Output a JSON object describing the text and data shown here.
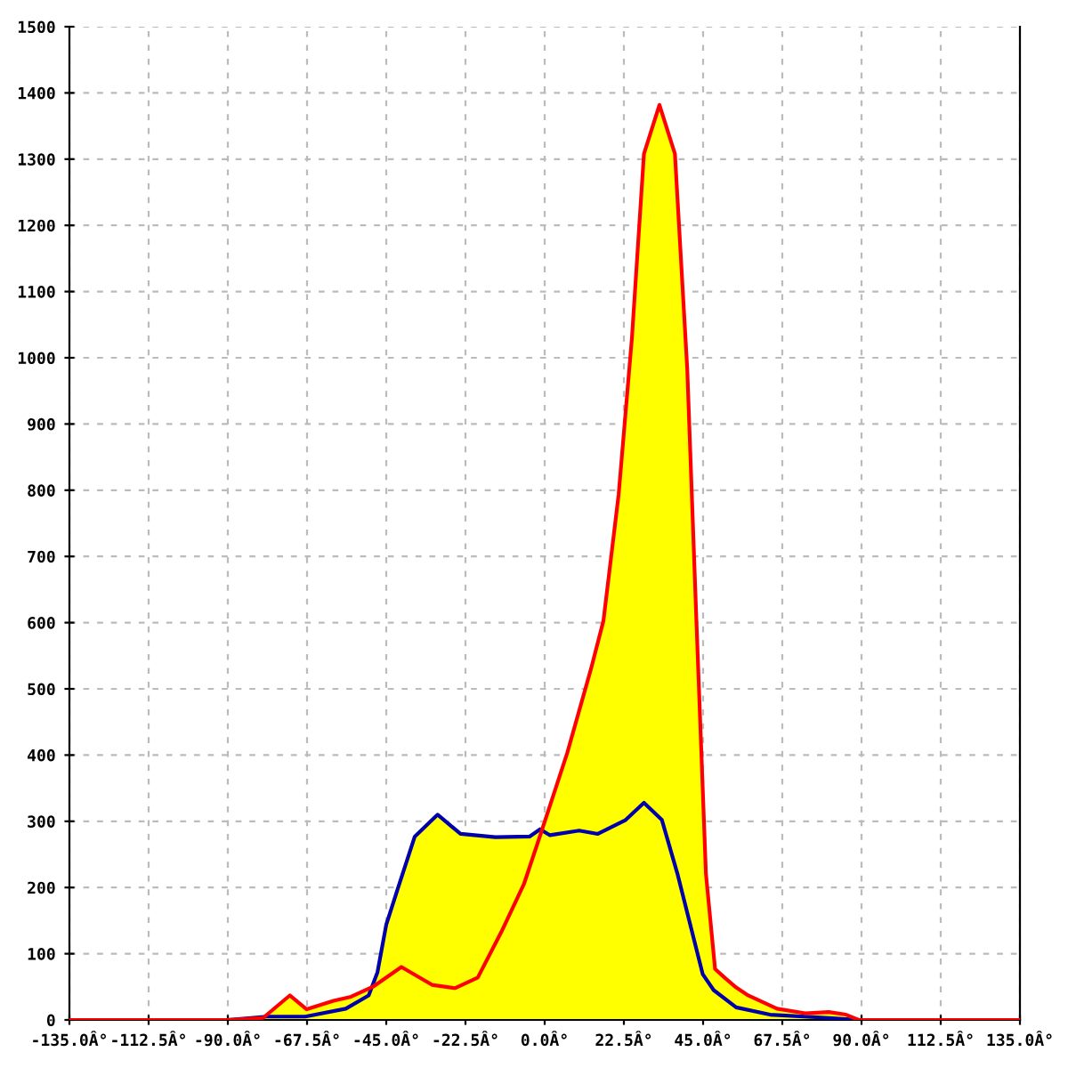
{
  "chart_data": {
    "type": "line",
    "xlim": [
      -135,
      135
    ],
    "ylim": [
      0,
      1500
    ],
    "xticks": [
      {
        "value": -135,
        "label": "-135.0Â°"
      },
      {
        "value": -112.5,
        "label": "-112.5Â°"
      },
      {
        "value": -90,
        "label": "-90.0Â°"
      },
      {
        "value": -67.5,
        "label": "-67.5Â°"
      },
      {
        "value": -45,
        "label": "-45.0Â°"
      },
      {
        "value": -22.5,
        "label": "-22.5Â°"
      },
      {
        "value": 0,
        "label": "0.0Â°"
      },
      {
        "value": 22.5,
        "label": "22.5Â°"
      },
      {
        "value": 45,
        "label": "45.0Â°"
      },
      {
        "value": 67.5,
        "label": "67.5Â°"
      },
      {
        "value": 90,
        "label": "90.0Â°"
      },
      {
        "value": 112.5,
        "label": "112.5Â°"
      },
      {
        "value": 135,
        "label": "135.0Â°"
      }
    ],
    "yticks": [
      0,
      100,
      200,
      300,
      400,
      500,
      600,
      700,
      800,
      900,
      1000,
      1100,
      1200,
      1300,
      1400,
      1500
    ],
    "grid": true,
    "legend": false,
    "series": [
      {
        "type": "area",
        "color": "#ffff00",
        "x": [
          -90,
          -80,
          -72.4,
          -67.6,
          -60,
          -55,
          -48.5,
          -47.5,
          -45,
          -41.8,
          -36.9,
          -30.4,
          -23.9,
          -14,
          -4.3,
          -1.3,
          6.4,
          13.2,
          16.7,
          21,
          24.8,
          28.2,
          32.6,
          37,
          40.5,
          43.1,
          45.8,
          48.4,
          51.3,
          54.4,
          57.8,
          66,
          74,
          80.7,
          85.6,
          89.2
        ],
        "values": [
          0,
          5,
          37,
          16,
          29,
          35,
          51,
          72,
          144,
          197,
          277,
          310,
          281,
          276,
          277,
          288,
          403,
          531,
          603,
          793,
          1031,
          1308,
          1382,
          1308,
          983,
          603,
          221,
          77,
          63,
          49,
          37,
          17,
          10,
          12,
          8,
          0
        ]
      },
      {
        "color": "#0000aa",
        "x": [
          -90,
          -79,
          -68,
          -56.5,
          -50,
          -47.5,
          -45,
          -41.8,
          -36.9,
          -30.4,
          -23.9,
          -14,
          -4.3,
          -1.3,
          1.5,
          9.8,
          15.1,
          23,
          28.2,
          33.3,
          37.7,
          44.9,
          48,
          54.4,
          64,
          80.7,
          89
        ],
        "values": [
          0,
          5,
          5,
          17,
          37,
          72,
          144,
          197,
          277,
          310,
          281,
          276,
          277,
          288,
          279,
          286,
          281,
          302,
          328,
          302,
          221,
          69,
          45,
          19,
          8,
          3,
          0
        ]
      },
      {
        "color": "#ff0000",
        "x": [
          -135,
          -90,
          -80,
          -72.4,
          -67.6,
          -60,
          -55,
          -48.5,
          -40.7,
          -32,
          -25.5,
          -19,
          -12.3,
          -5.9,
          -1,
          6.4,
          13.2,
          16.7,
          21,
          24.8,
          28.2,
          32.6,
          37,
          40.5,
          43.1,
          45.8,
          48.4,
          51.3,
          54.4,
          57.8,
          66,
          74,
          80.7,
          85.6,
          89.2,
          135
        ],
        "values": [
          0,
          0,
          3,
          37,
          16,
          29,
          35,
          51,
          80,
          53,
          48,
          64,
          133,
          205,
          283,
          403,
          531,
          603,
          793,
          1031,
          1308,
          1382,
          1308,
          983,
          603,
          221,
          77,
          63,
          49,
          37,
          17,
          10,
          12,
          8,
          0,
          0
        ]
      }
    ]
  }
}
